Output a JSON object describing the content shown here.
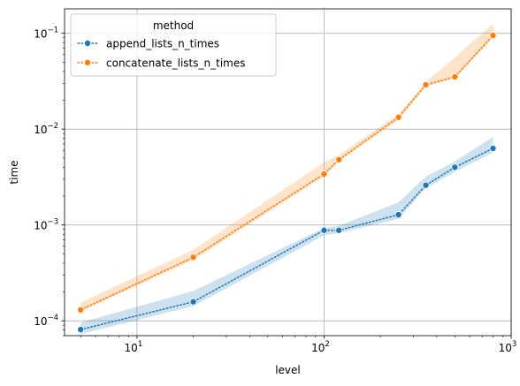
{
  "chart_data": {
    "type": "line",
    "xscale": "log",
    "yscale": "log",
    "xlabel": "level",
    "ylabel": "time",
    "xlim": [
      4.1,
      1000
    ],
    "ylim": [
      7e-05,
      0.18
    ],
    "grid": true,
    "legend": {
      "title": "method",
      "placement": "top-left"
    },
    "xticks": [
      {
        "value": 10,
        "base": "10",
        "exp": "1"
      },
      {
        "value": 100,
        "base": "10",
        "exp": "2"
      },
      {
        "value": 1000,
        "base": "10",
        "exp": "3"
      }
    ],
    "yticks": [
      {
        "value": 0.0001,
        "base": "10",
        "exp": "−4"
      },
      {
        "value": 0.001,
        "base": "10",
        "exp": "−3"
      },
      {
        "value": 0.01,
        "base": "10",
        "exp": "−2"
      },
      {
        "value": 0.1,
        "base": "10",
        "exp": "−1"
      }
    ],
    "series": [
      {
        "name": "append_lists_n_times",
        "color": "#1f77b4",
        "x": [
          5,
          20,
          100,
          120,
          250,
          350,
          500,
          800
        ],
        "y": [
          8.1e-05,
          0.000158,
          0.00088,
          0.00088,
          0.00128,
          0.0026,
          0.004,
          0.0063
        ],
        "ci_low": [
          7.3e-05,
          0.000142,
          0.00078,
          0.00082,
          0.00116,
          0.00242,
          0.0036,
          0.0057
        ],
        "ci_high": [
          9.6e-05,
          0.000205,
          0.00093,
          0.00098,
          0.00172,
          0.0032,
          0.0046,
          0.0083
        ]
      },
      {
        "name": "concatenate_lists_n_times",
        "color": "#ff7f0e",
        "x": [
          5,
          20,
          100,
          120,
          250,
          350,
          500,
          800
        ],
        "y": [
          0.00013,
          0.00046,
          0.0034,
          0.0048,
          0.0133,
          0.029,
          0.035,
          0.095
        ],
        "ci_low": [
          0.000125,
          0.00043,
          0.0032,
          0.0046,
          0.0124,
          0.028,
          0.034,
          0.089
        ],
        "ci_high": [
          0.000155,
          0.00055,
          0.0045,
          0.0054,
          0.0143,
          0.031,
          0.056,
          0.125
        ]
      }
    ]
  }
}
